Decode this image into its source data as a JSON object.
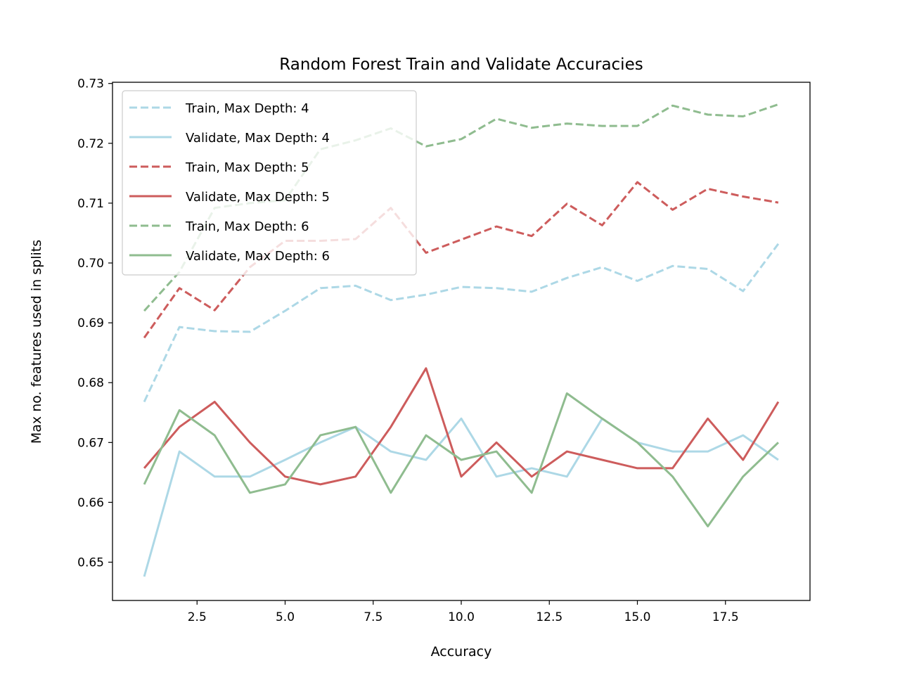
{
  "chart_data": {
    "type": "line",
    "title": "Random Forest Train and Validate Accuracies",
    "xlabel": "Accuracy",
    "ylabel": "Max no. features used in splits",
    "xlim": [
      0.1,
      19.9
    ],
    "ylim": [
      0.6436,
      0.7302
    ],
    "xticks": [
      "2.5",
      "5.0",
      "7.5",
      "10.0",
      "12.5",
      "15.0",
      "17.5"
    ],
    "xtick_values": [
      2.5,
      5.0,
      7.5,
      10.0,
      12.5,
      15.0,
      17.5
    ],
    "yticks": [
      "0.65",
      "0.66",
      "0.67",
      "0.68",
      "0.69",
      "0.70",
      "0.71",
      "0.72",
      "0.73"
    ],
    "ytick_values": [
      0.65,
      0.66,
      0.67,
      0.68,
      0.69,
      0.7,
      0.71,
      0.72,
      0.73
    ],
    "grid": false,
    "legend_position": "top-left",
    "x": [
      1,
      2,
      3,
      4,
      5,
      6,
      7,
      8,
      9,
      10,
      11,
      12,
      13,
      14,
      15,
      16,
      17,
      18,
      19
    ],
    "series": [
      {
        "name": "Train, Max Depth: 4",
        "color": "#add8e6",
        "dash": true,
        "values": [
          0.6768,
          0.6893,
          0.6886,
          0.6885,
          0.692,
          0.6958,
          0.6962,
          0.6938,
          0.6947,
          0.696,
          0.6958,
          0.6952,
          0.6975,
          0.6993,
          0.697,
          0.6995,
          0.699,
          0.6953,
          0.7032
        ]
      },
      {
        "name": "Validate, Max Depth: 4",
        "color": "#add8e6",
        "dash": false,
        "values": [
          0.6476,
          0.6685,
          0.6643,
          0.6643,
          0.6671,
          0.67,
          0.6726,
          0.6685,
          0.6671,
          0.674,
          0.6643,
          0.6657,
          0.6643,
          0.674,
          0.67,
          0.6685,
          0.6685,
          0.6712,
          0.6671
        ]
      },
      {
        "name": "Train, Max Depth: 5",
        "color": "#cd5c5c",
        "dash": true,
        "values": [
          0.6875,
          0.6958,
          0.6921,
          0.6993,
          0.7037,
          0.7037,
          0.704,
          0.7092,
          0.7017,
          0.7039,
          0.7061,
          0.7045,
          0.7099,
          0.7063,
          0.7135,
          0.7089,
          0.7124,
          0.7111,
          0.7101
        ]
      },
      {
        "name": "Validate, Max Depth: 5",
        "color": "#cd5c5c",
        "dash": false,
        "values": [
          0.6657,
          0.6726,
          0.6768,
          0.67,
          0.6643,
          0.663,
          0.6643,
          0.6726,
          0.6824,
          0.6643,
          0.67,
          0.6643,
          0.6685,
          0.6671,
          0.6657,
          0.6657,
          0.674,
          0.6671,
          0.6768
        ]
      },
      {
        "name": "Train, Max Depth: 6",
        "color": "#8fbc8f",
        "dash": true,
        "values": [
          0.692,
          0.6985,
          0.7092,
          0.71,
          0.7105,
          0.719,
          0.7205,
          0.7225,
          0.7195,
          0.7207,
          0.7241,
          0.7226,
          0.7233,
          0.7229,
          0.7229,
          0.7263,
          0.7248,
          0.7245,
          0.7265
        ]
      },
      {
        "name": "Validate, Max Depth: 6",
        "color": "#8fbc8f",
        "dash": false,
        "values": [
          0.663,
          0.6754,
          0.6712,
          0.6616,
          0.663,
          0.6712,
          0.6726,
          0.6616,
          0.6712,
          0.6671,
          0.6685,
          0.6616,
          0.6782,
          0.674,
          0.67,
          0.6643,
          0.656,
          0.6643,
          0.67
        ]
      }
    ]
  }
}
